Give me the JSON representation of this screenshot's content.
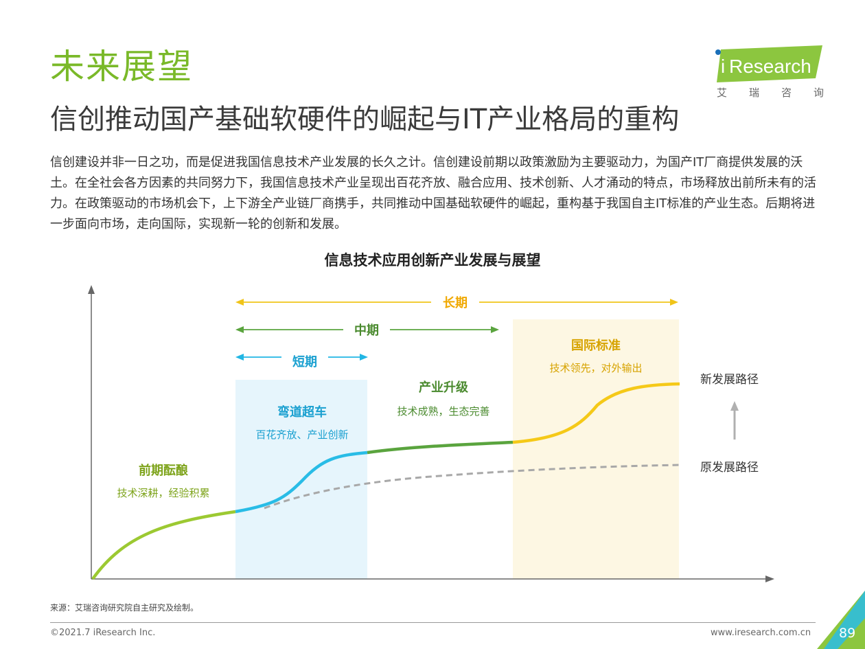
{
  "header": {
    "title": "未来展望",
    "subtitle": "信创推动国产基础软硬件的崛起与IT产业格局的重构",
    "logo_text": "Research",
    "logo_i": "i",
    "logo_sub": [
      "艾",
      "瑞",
      "咨",
      "询"
    ]
  },
  "intro": "信创建设并非一日之功，而是促进我国信息技术产业发展的长久之计。信创建设前期以政策激励为主要驱动力，为国产IT厂商提供发展的沃土。在全社会各方因素的共同努力下，我国信息技术产业呈现出百花齐放、融合应用、技术创新、人才涌动的特点，市场释放出前所未有的活力。在政策驱动的市场机会下，上下游全产业链厂商携手，共同推动中国基础软硬件的崛起，重构基于我国自主IT标准的产业生态。后期将进一步面向市场，走向国际，实现新一轮的创新和发展。",
  "diagram": {
    "title": "信息技术应用创新产业发展与展望",
    "periods": {
      "long": "长期",
      "mid": "中期",
      "short": "短期"
    },
    "stages": [
      {
        "name": "前期酝酿",
        "desc": "技术深耕，经验积累"
      },
      {
        "name": "弯道超车",
        "desc": "百花齐放、产业创新"
      },
      {
        "name": "产业升级",
        "desc": "技术成熟，生态完善"
      },
      {
        "name": "国际标准",
        "desc": "技术领先，对外输出"
      }
    ],
    "paths": {
      "new": "新发展路径",
      "old": "原发展路径"
    }
  },
  "footer": {
    "source": "来源：艾瑞咨询研究院自主研究及绘制。",
    "copyright": "©2021.7 iResearch Inc.",
    "website": "www.iresearch.com.cn",
    "page": "89"
  },
  "colors": {
    "brand_green": "#7ab929",
    "olive": "#8aa51e",
    "cyan": "#21b6e4",
    "dark_green": "#5aa43e",
    "gold": "#f0c419",
    "gold_text": "#d7a300",
    "short_bg": "#e6f5fc",
    "intl_bg": "#fdf7e3"
  }
}
